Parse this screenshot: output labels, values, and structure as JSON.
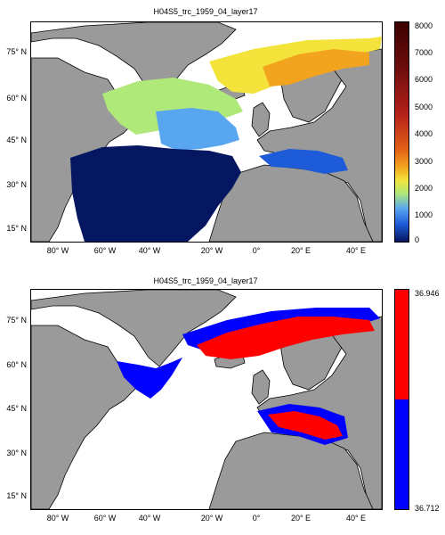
{
  "panels": [
    {
      "title": "H04S5_trc_1959_04_layer17",
      "lat_labels": [
        "75° N",
        "60° N",
        "45° N",
        "30° N",
        "15° N"
      ],
      "lon_labels": [
        "80° W",
        "60° W",
        "40° W",
        "20° W",
        "0°",
        "20° E",
        "40° E"
      ],
      "colorbar_ticks": [
        "8000",
        "7000",
        "6000",
        "5000",
        "4000",
        "3000",
        "2000",
        "1000",
        "0"
      ],
      "colorbar_colors": [
        "#061761",
        "#1e5bd8",
        "#58a6f0",
        "#aee97a",
        "#f3e33a",
        "#f3a41f",
        "#e26116",
        "#b6211b",
        "#6b0c0c",
        "#3b0000"
      ]
    },
    {
      "title": "H04S5_trc_1959_04_layer17",
      "lat_labels": [
        "75° N",
        "60° N",
        "45° N",
        "30° N",
        "15° N"
      ],
      "lon_labels": [
        "80° W",
        "60° W",
        "40° W",
        "20° W",
        "0°",
        "20° E",
        "40° E"
      ],
      "colorbar_top": "36.946",
      "colorbar_bottom": "36.712",
      "colorbar_colors": [
        "#ff0000",
        "#0000ff"
      ]
    }
  ],
  "land_color": "#9a9a9a",
  "ocean_color": "#ffffff"
}
